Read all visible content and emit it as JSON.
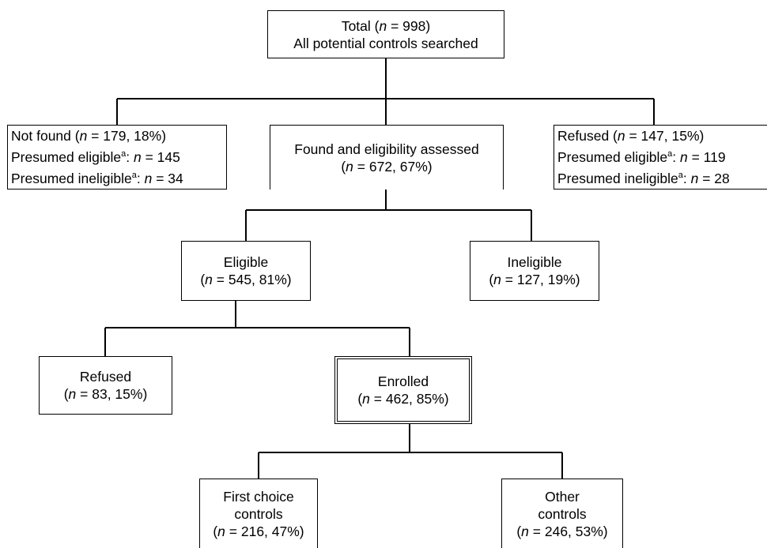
{
  "n_symbol": "n",
  "sup_mark": "a",
  "nodes": {
    "total": {
      "line1_pre": "Total (",
      "line1_post": " = 998)",
      "line2": "All potential controls searched"
    },
    "not_found": {
      "line1_pre": "Not found (",
      "line1_post": " = 179, 18%)",
      "line2_pre": "Presumed eligible",
      "line2_post": " = 145",
      "line3_pre": "Presumed ineligible",
      "line3_post": " = 34"
    },
    "found_assessed": {
      "line1": "Found and eligibility assessed",
      "line2_pre": "(",
      "line2_post": " = 672, 67%)"
    },
    "refused_top": {
      "line1_pre": "Refused (",
      "line1_post": " = 147, 15%)",
      "line2_pre": "Presumed eligible",
      "line2_post": " = 119",
      "line3_pre": "Presumed ineligible",
      "line3_post": " = 28"
    },
    "eligible": {
      "line1": "Eligible",
      "line2_pre": "(",
      "line2_post": " = 545, 81%)"
    },
    "ineligible": {
      "line1": "Ineligible",
      "line2_pre": "(",
      "line2_post": " = 127, 19%)"
    },
    "refused": {
      "line1": "Refused",
      "line2_pre": "(",
      "line2_post": " = 83, 15%)"
    },
    "enrolled": {
      "line1": "Enrolled",
      "line2_pre": "(",
      "line2_post": " = 462, 85%)"
    },
    "first_choice": {
      "line1": "First choice",
      "line2": "controls",
      "line3_pre": "(",
      "line3_post": " = 216, 47%)"
    },
    "other_controls": {
      "line1": "Other",
      "line2": "controls",
      "line3_pre": "(",
      "line3_post": " = 246, 53%)"
    }
  }
}
